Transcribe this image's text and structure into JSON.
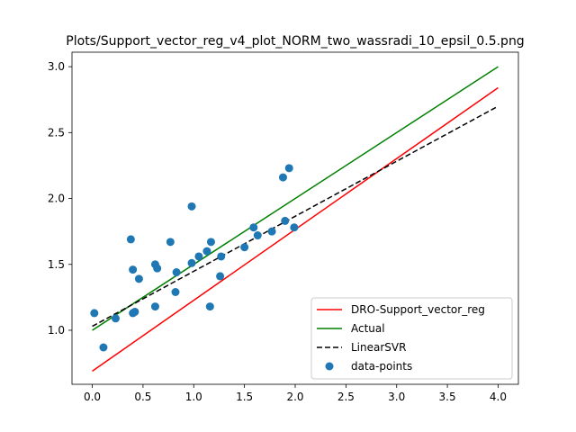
{
  "chart_data": {
    "type": "scatter",
    "title": "Plots/Support_vector_reg_v4_plot_NORM_two_wassradi_10_epsil_0.5.png",
    "xlabel": "",
    "ylabel": "",
    "xlim": [
      -0.2,
      4.2
    ],
    "ylim": [
      0.59,
      3.11
    ],
    "xticks": [
      "0.0",
      "0.5",
      "1.0",
      "1.5",
      "2.0",
      "2.5",
      "3.0",
      "3.5",
      "4.0"
    ],
    "yticks": [
      "1.0",
      "1.5",
      "2.0",
      "2.5",
      "3.0"
    ],
    "grid": false,
    "legend_position": "lower-right",
    "series": [
      {
        "name": "DRO-Support_vector_reg",
        "kind": "line",
        "color": "#ff0000",
        "dash": "",
        "x": [
          0,
          4
        ],
        "y": [
          0.69,
          2.84
        ]
      },
      {
        "name": "Actual",
        "kind": "line",
        "color": "#008000",
        "dash": "",
        "x": [
          0,
          4
        ],
        "y": [
          1.0,
          3.0
        ]
      },
      {
        "name": "LinearSVR",
        "kind": "line",
        "color": "#000000",
        "dash": "6,3",
        "x": [
          0,
          4
        ],
        "y": [
          1.03,
          2.7
        ]
      },
      {
        "name": "data-points",
        "kind": "scatter",
        "color": "#1f77b4",
        "points": [
          [
            0.02,
            1.13
          ],
          [
            0.11,
            0.87
          ],
          [
            0.23,
            1.09
          ],
          [
            0.38,
            1.69
          ],
          [
            0.4,
            1.46
          ],
          [
            0.4,
            1.13
          ],
          [
            0.42,
            1.14
          ],
          [
            0.46,
            1.39
          ],
          [
            0.62,
            1.5
          ],
          [
            0.62,
            1.18
          ],
          [
            0.64,
            1.47
          ],
          [
            0.77,
            1.67
          ],
          [
            0.82,
            1.29
          ],
          [
            0.83,
            1.44
          ],
          [
            0.98,
            1.94
          ],
          [
            0.98,
            1.51
          ],
          [
            1.05,
            1.56
          ],
          [
            1.13,
            1.6
          ],
          [
            1.16,
            1.18
          ],
          [
            1.17,
            1.67
          ],
          [
            1.26,
            1.41
          ],
          [
            1.27,
            1.56
          ],
          [
            1.5,
            1.63
          ],
          [
            1.59,
            1.78
          ],
          [
            1.63,
            1.72
          ],
          [
            1.77,
            1.75
          ],
          [
            1.88,
            2.16
          ],
          [
            1.9,
            1.83
          ],
          [
            1.94,
            2.23
          ],
          [
            1.99,
            1.78
          ]
        ]
      }
    ]
  }
}
